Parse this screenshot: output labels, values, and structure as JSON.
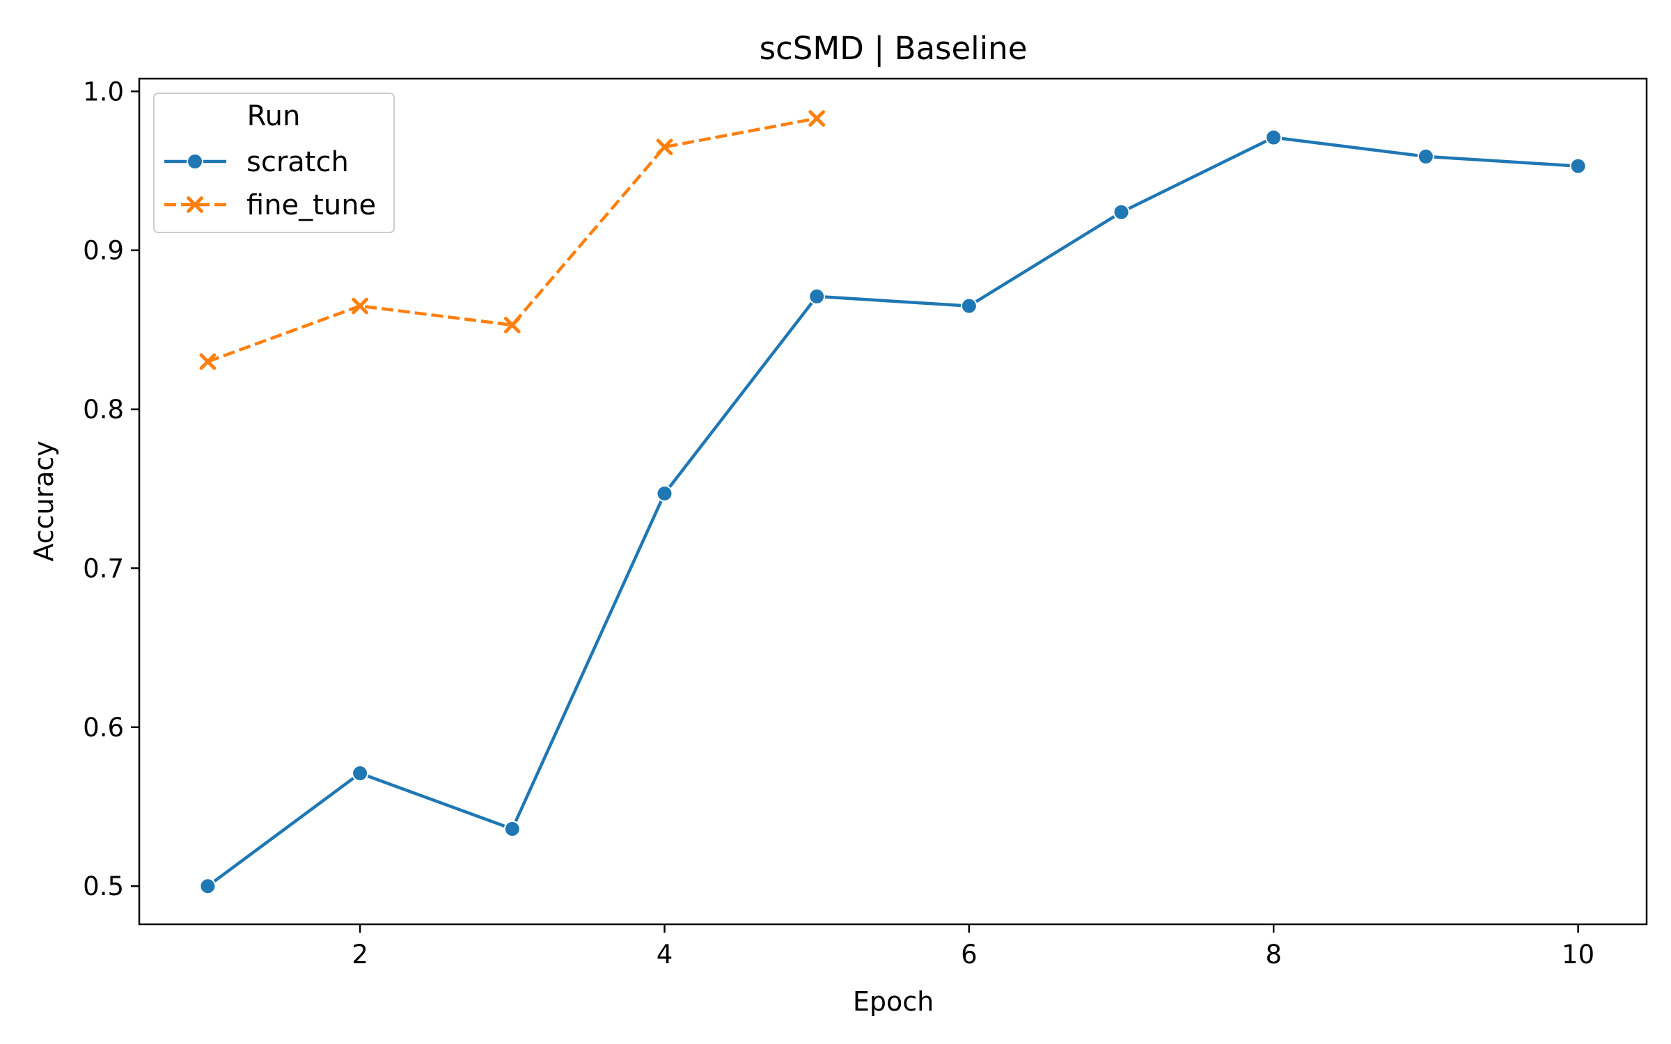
{
  "chart_data": {
    "type": "line",
    "title": "scSMD | Baseline",
    "xlabel": "Epoch",
    "ylabel": "Accuracy",
    "xlim": [
      0.55,
      10.45
    ],
    "ylim": [
      0.476,
      1.008
    ],
    "xticks": [
      2,
      4,
      6,
      8,
      10
    ],
    "yticks": [
      0.5,
      0.6,
      0.7,
      0.8,
      0.9,
      1.0
    ],
    "ytick_labels": [
      "0.5",
      "0.6",
      "0.7",
      "0.8",
      "0.9",
      "1.0"
    ],
    "grid": false,
    "legend": {
      "title": "Run",
      "placement": "top-left"
    },
    "series": [
      {
        "name": "scratch",
        "color": "#1f77b4",
        "marker": "circle",
        "linestyle": "solid",
        "x": [
          1,
          2,
          3,
          4,
          5,
          6,
          7,
          8,
          9,
          10
        ],
        "y": [
          0.5,
          0.571,
          0.536,
          0.747,
          0.871,
          0.865,
          0.924,
          0.971,
          0.959,
          0.953
        ]
      },
      {
        "name": "fine_tune",
        "color": "#ff7f0e",
        "marker": "x",
        "linestyle": "dashed",
        "x": [
          1,
          2,
          3,
          4,
          5
        ],
        "y": [
          0.83,
          0.865,
          0.853,
          0.965,
          0.983
        ]
      }
    ]
  }
}
